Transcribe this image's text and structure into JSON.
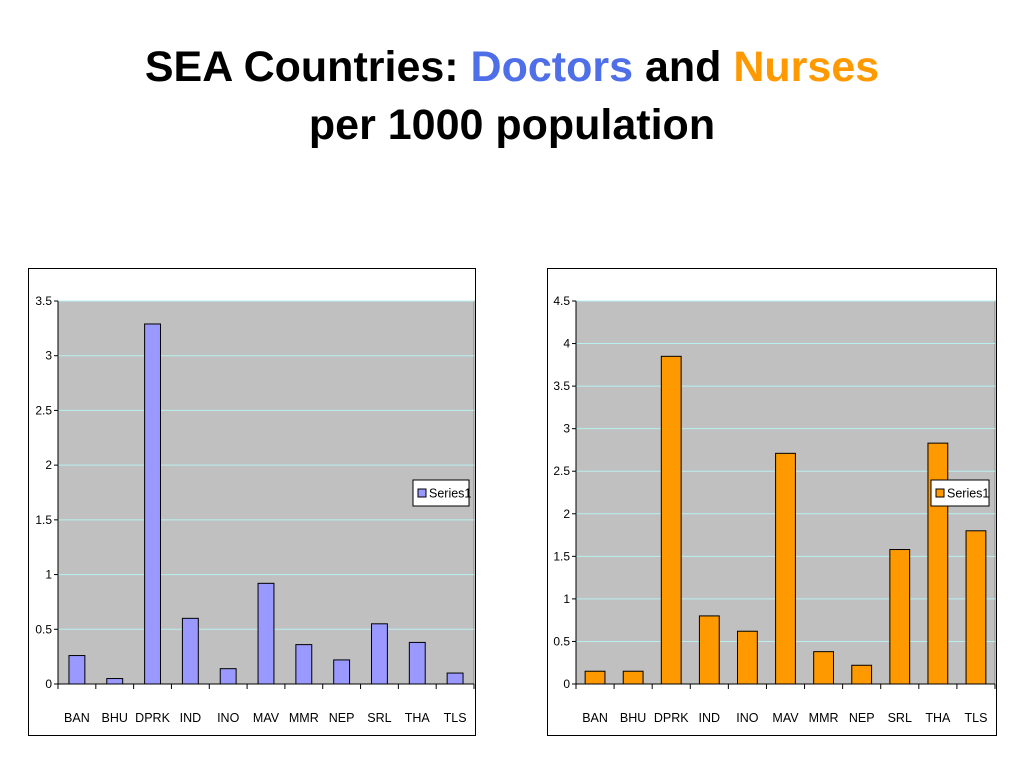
{
  "slide": {
    "title_part1": "SEA Countries: ",
    "title_doctors": "Doctors",
    "title_and": " and ",
    "title_nurses": "Nurses",
    "title_line2": "per 1000 population"
  },
  "colors": {
    "doctors_bar": "#9999ff",
    "nurses_bar": "#ff9900",
    "plot_bg": "#c0c0c0",
    "gridline": "#b8f0f0"
  },
  "chart_data": [
    {
      "type": "bar",
      "categories": [
        "BAN",
        "BHU",
        "DPRK",
        "IND",
        "INO",
        "MAV",
        "MMR",
        "NEP",
        "SRL",
        "THA",
        "TLS"
      ],
      "series": [
        {
          "name": "Series1",
          "values": [
            0.26,
            0.05,
            3.29,
            0.6,
            0.14,
            0.92,
            0.36,
            0.22,
            0.55,
            0.38,
            0.1
          ]
        }
      ],
      "ylim": [
        0,
        3.5
      ],
      "yticks": [
        "0",
        "0.5",
        "1",
        "1.5",
        "2",
        "2.5",
        "3",
        "3.5"
      ],
      "grid": true,
      "legend": "right",
      "xlabel": "",
      "ylabel": ""
    },
    {
      "type": "bar",
      "categories": [
        "BAN",
        "BHU",
        "DPRK",
        "IND",
        "INO",
        "MAV",
        "MMR",
        "NEP",
        "SRL",
        "THA",
        "TLS"
      ],
      "series": [
        {
          "name": "Series1",
          "values": [
            0.15,
            0.15,
            3.85,
            0.8,
            0.62,
            2.71,
            0.38,
            0.22,
            1.58,
            2.83,
            1.8
          ]
        }
      ],
      "ylim": [
        0,
        4.5
      ],
      "yticks": [
        "0",
        "0.5",
        "1",
        "1.5",
        "2",
        "2.5",
        "3",
        "3.5",
        "4",
        "4.5"
      ],
      "grid": true,
      "legend": "right",
      "xlabel": "",
      "ylabel": ""
    }
  ]
}
